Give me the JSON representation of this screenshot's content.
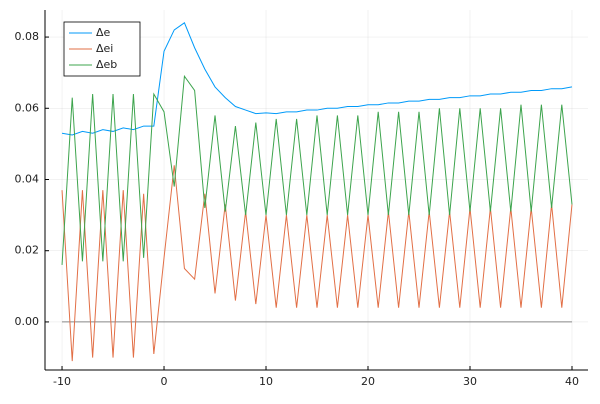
{
  "chart_data": {
    "type": "line",
    "x": [
      -10,
      -9,
      -8,
      -7,
      -6,
      -5,
      -4,
      -3,
      -2,
      -1,
      0,
      1,
      2,
      3,
      4,
      5,
      6,
      7,
      8,
      9,
      10,
      11,
      12,
      13,
      14,
      15,
      16,
      17,
      18,
      19,
      20,
      21,
      22,
      23,
      24,
      25,
      26,
      27,
      28,
      29,
      30,
      31,
      32,
      33,
      34,
      35,
      36,
      37,
      38,
      39,
      40
    ],
    "series": [
      {
        "name": "Δe",
        "color": "#009af9",
        "values": [
          0.053,
          0.0525,
          0.0535,
          0.053,
          0.054,
          0.0535,
          0.0545,
          0.054,
          0.055,
          0.055,
          0.076,
          0.082,
          0.084,
          0.077,
          0.071,
          0.066,
          0.063,
          0.0605,
          0.0595,
          0.0585,
          0.0587,
          0.0585,
          0.059,
          0.059,
          0.0595,
          0.0595,
          0.06,
          0.06,
          0.0605,
          0.0605,
          0.061,
          0.061,
          0.0615,
          0.0615,
          0.062,
          0.062,
          0.0625,
          0.0625,
          0.063,
          0.063,
          0.0635,
          0.0635,
          0.064,
          0.064,
          0.0645,
          0.0645,
          0.065,
          0.065,
          0.0655,
          0.0655,
          0.066
        ]
      },
      {
        "name": "Δei",
        "color": "#e26f46",
        "values": [
          0.037,
          -0.011,
          0.037,
          -0.01,
          0.037,
          -0.01,
          0.037,
          -0.01,
          0.036,
          -0.009,
          0.018,
          0.044,
          0.015,
          0.012,
          0.036,
          0.008,
          0.033,
          0.006,
          0.031,
          0.005,
          0.03,
          0.004,
          0.03,
          0.004,
          0.03,
          0.004,
          0.03,
          0.004,
          0.03,
          0.004,
          0.03,
          0.004,
          0.031,
          0.004,
          0.031,
          0.004,
          0.031,
          0.004,
          0.031,
          0.004,
          0.032,
          0.004,
          0.032,
          0.004,
          0.032,
          0.004,
          0.032,
          0.004,
          0.033,
          0.004,
          0.033
        ]
      },
      {
        "name": "Δeb",
        "color": "#3da44d",
        "values": [
          0.016,
          0.063,
          0.017,
          0.064,
          0.017,
          0.064,
          0.017,
          0.064,
          0.018,
          0.064,
          0.059,
          0.038,
          0.069,
          0.065,
          0.032,
          0.058,
          0.031,
          0.055,
          0.03,
          0.056,
          0.03,
          0.057,
          0.03,
          0.057,
          0.03,
          0.058,
          0.03,
          0.058,
          0.03,
          0.058,
          0.03,
          0.059,
          0.03,
          0.059,
          0.03,
          0.059,
          0.03,
          0.06,
          0.03,
          0.06,
          0.031,
          0.06,
          0.031,
          0.06,
          0.031,
          0.061,
          0.031,
          0.061,
          0.032,
          0.061,
          0.033
        ]
      }
    ],
    "hline": 0,
    "hline_color": "#888888",
    "xlim": [
      -11.67,
      41.57
    ],
    "xticks": [
      -10,
      0,
      10,
      20,
      30,
      40
    ],
    "ylim": [
      -0.0135,
      0.0876
    ],
    "yticks": [
      {
        "value": 0,
        "label": "0.00"
      },
      {
        "value": 0.02,
        "label": "0.02"
      },
      {
        "value": 0.04,
        "label": "0.04"
      },
      {
        "value": 0.06,
        "label": "0.06"
      },
      {
        "value": 0.08,
        "label": "0.08"
      }
    ],
    "grid": true,
    "legend": "top-left"
  }
}
